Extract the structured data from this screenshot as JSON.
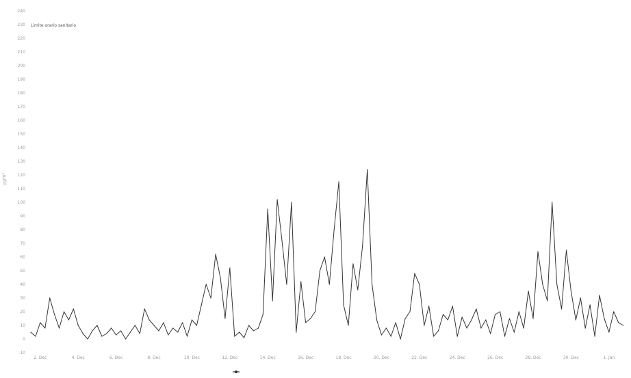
{
  "chart_data": {
    "type": "line",
    "title": "",
    "xlabel": "",
    "ylabel": "µg/m³",
    "ylim": [
      -10,
      240
    ],
    "yticks": [
      -10,
      0,
      10,
      20,
      30,
      40,
      50,
      60,
      70,
      80,
      90,
      100,
      110,
      120,
      130,
      140,
      150,
      160,
      170,
      180,
      190,
      200,
      210,
      220,
      230,
      240
    ],
    "x_tick_labels": [
      "2. Dec",
      "4. Dec",
      "6. Dec",
      "8. Dec",
      "10. Dec",
      "12. Dec",
      "14. Dec",
      "16. Dec",
      "18. Dec",
      "20. Dec",
      "22. Dec",
      "24. Dec",
      "26. Dec",
      "28. Dec",
      "30. Dec",
      "1. Jan"
    ],
    "xlim": [
      0,
      31.3
    ],
    "grid": false,
    "legend_position": "bottom",
    "annotation": {
      "text": "Limite orario sanitario",
      "y": 230
    },
    "series": [
      {
        "name": "",
        "color": "#333333",
        "x": [
          0.0,
          0.25,
          0.5,
          0.75,
          1.0,
          1.25,
          1.5,
          1.75,
          2.0,
          2.25,
          2.5,
          2.75,
          3.0,
          3.25,
          3.5,
          3.75,
          4.0,
          4.25,
          4.5,
          4.75,
          5.0,
          5.25,
          5.5,
          5.75,
          6.0,
          6.25,
          6.5,
          6.75,
          7.0,
          7.25,
          7.5,
          7.75,
          8.0,
          8.25,
          8.5,
          8.75,
          9.0,
          9.25,
          9.5,
          9.75,
          10.0,
          10.25,
          10.5,
          10.75,
          11.0,
          11.25,
          11.5,
          11.75,
          12.0,
          12.25,
          12.5,
          12.75,
          13.0,
          13.25,
          13.5,
          13.75,
          14.0,
          14.25,
          14.5,
          14.75,
          15.0,
          15.25,
          15.5,
          15.75,
          16.0,
          16.25,
          16.5,
          16.75,
          17.0,
          17.25,
          17.5,
          17.75,
          18.0,
          18.25,
          18.5,
          18.75,
          19.0,
          19.25,
          19.5,
          19.75,
          20.0,
          20.25,
          20.5,
          20.75,
          21.0,
          21.25,
          21.5,
          21.75,
          22.0,
          22.25,
          22.5,
          22.75,
          23.0,
          23.25,
          23.5,
          23.75,
          24.0,
          24.25,
          24.5,
          24.75,
          25.0,
          25.25,
          25.5,
          25.75,
          26.0,
          26.25,
          26.5,
          26.75,
          27.0,
          27.25,
          27.5,
          27.75,
          28.0,
          28.25,
          28.5,
          28.75,
          29.0,
          29.25,
          29.5,
          29.75,
          30.0,
          30.25,
          30.5,
          30.75,
          31.0,
          31.25
        ],
        "y": [
          5,
          2,
          12,
          8,
          30,
          18,
          8,
          20,
          14,
          22,
          10,
          4,
          0,
          6,
          10,
          2,
          4,
          8,
          3,
          6,
          0,
          5,
          10,
          4,
          22,
          14,
          10,
          6,
          12,
          3,
          8,
          5,
          12,
          2,
          14,
          10,
          25,
          40,
          30,
          62,
          45,
          15,
          52,
          2,
          5,
          1,
          10,
          6,
          8,
          18,
          95,
          28,
          102,
          72,
          40,
          100,
          5,
          42,
          12,
          15,
          20,
          50,
          60,
          40,
          80,
          115,
          25,
          10,
          55,
          36,
          68,
          124,
          40,
          14,
          3,
          8,
          2,
          12,
          0,
          15,
          20,
          48,
          40,
          10,
          24,
          2,
          6,
          18,
          14,
          24,
          2,
          16,
          8,
          14,
          22,
          8,
          14,
          4,
          18,
          20,
          2,
          15,
          5,
          20,
          8,
          35,
          15,
          64,
          40,
          28,
          100,
          40,
          22,
          65,
          35,
          14,
          30,
          8,
          25,
          2,
          32,
          15,
          5,
          20,
          12,
          10
        ]
      }
    ]
  }
}
